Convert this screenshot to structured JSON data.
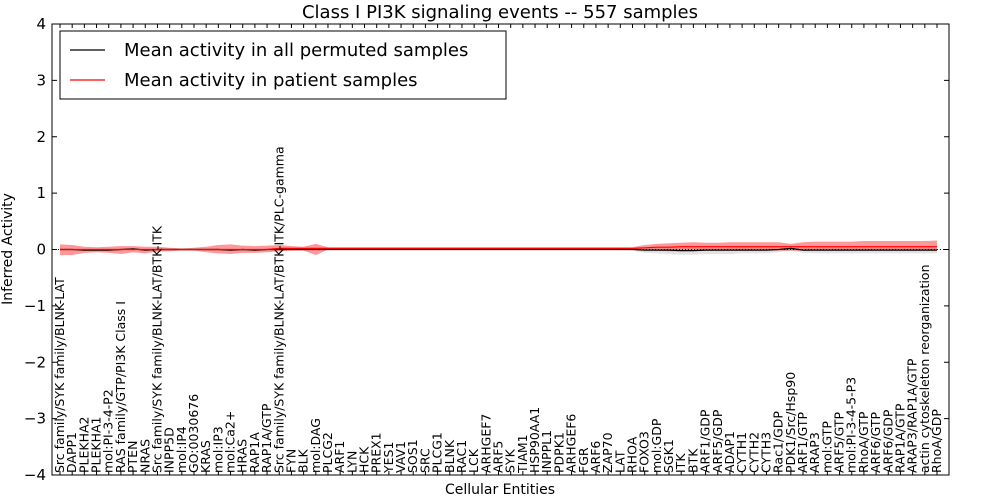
{
  "chart_data": {
    "type": "line",
    "title": "Class I PI3K signaling events -- 557 samples",
    "xlabel": "Cellular Entities",
    "ylabel": "Inferred Activity",
    "ylim": [
      -4,
      4
    ],
    "yticks": [
      -4,
      -3,
      -2,
      -1,
      0,
      1,
      2,
      3,
      4
    ],
    "ytick_labels": [
      "−4",
      "−3",
      "−2",
      "−1",
      "0",
      "1",
      "2",
      "3",
      "4"
    ],
    "legend_position": "top-left",
    "categories": [
      "Src family/SYK family/BLNK-LAT",
      "DAPP1",
      "PLEKHA2",
      "PLEKHA1",
      "mol:PI-3-4-P2",
      "RAS family/GTP/PI3K Class I",
      "PTEN",
      "NRAS",
      "Src family/SYK family/BLNK-LAT/BTK-ITK",
      "INPP5D",
      "mol:IP4",
      "GO:0030676",
      "KRAS",
      "mol:IP3",
      "mol:Ca2+",
      "HRAS",
      "RAP1A",
      "RAP1A/GTP",
      "Src family/SYK family/BLNK-LAT/BTK-ITK/PLC-gamma",
      "FYN",
      "BLK",
      "mol:DAG",
      "PLCG2",
      "ARF1",
      "LYN",
      "HCK",
      "PREX1",
      "YES1",
      "VAV1",
      "SOS1",
      "SRC",
      "PLCG1",
      "BLNK",
      "RAC1",
      "LCK",
      "ARHGEF7",
      "ARF5",
      "SYK",
      "TIAM1",
      "HSP90AA1",
      "INPPL1",
      "PDPK1",
      "ARHGEF6",
      "FGR",
      "ARF6",
      "ZAP70",
      "LAT",
      "RHOA",
      "FOXO3",
      "mol:GDP",
      "SGK1",
      "ITK",
      "BTK",
      "ARF1/GDP",
      "ARF5/GDP",
      "ADAP1",
      "CYTH1",
      "CYTH2",
      "CYTH3",
      "Rac1/GDP",
      "PDK1/Src/Hsp90",
      "ARF1/GTP",
      "ARAP3",
      "mol:GTP",
      "ARF5/GTP",
      "mol:PI-3-4-5-P3",
      "RhoA/GTP",
      "ARF6/GTP",
      "ARF6/GDP",
      "RAP1A/GTP",
      "ARAP3/RAP1A/GTP",
      "actin cytoskeleton reorganization",
      "RhoA/GDP"
    ],
    "series": [
      {
        "name": "Mean activity in all permuted samples",
        "color": "#000000",
        "values": [
          0,
          0,
          -0.01,
          -0.01,
          -0.01,
          0,
          0.01,
          -0.01,
          0,
          0,
          0,
          0,
          0,
          0,
          -0.01,
          0,
          -0.01,
          0,
          0,
          0,
          0,
          0,
          0,
          0,
          0,
          0,
          0,
          0,
          0,
          0,
          0,
          0,
          0,
          0,
          0,
          0,
          0,
          0,
          0,
          0,
          0,
          0,
          0,
          0,
          0,
          0,
          0,
          0,
          -0.01,
          -0.01,
          -0.01,
          -0.02,
          -0.02,
          -0.01,
          -0.01,
          -0.01,
          -0.01,
          -0.01,
          -0.01,
          0,
          0.02,
          -0.01,
          -0.01,
          -0.01,
          -0.01,
          -0.01,
          -0.01,
          -0.01,
          -0.01,
          -0.01,
          -0.01,
          -0.01,
          -0.01
        ],
        "band_low": [
          -0.01,
          -0.01,
          -0.02,
          -0.02,
          -0.02,
          -0.01,
          0,
          -0.02,
          -0.01,
          -0.01,
          -0.01,
          -0.01,
          -0.01,
          -0.01,
          -0.02,
          -0.01,
          -0.02,
          -0.01,
          -0.01,
          -0.01,
          -0.01,
          -0.01,
          -0.01,
          -0.01,
          -0.01,
          -0.01,
          -0.01,
          -0.01,
          -0.01,
          -0.01,
          -0.01,
          -0.01,
          -0.01,
          -0.01,
          -0.01,
          -0.01,
          -0.01,
          -0.01,
          -0.01,
          -0.01,
          -0.01,
          -0.01,
          -0.01,
          -0.01,
          -0.01,
          -0.01,
          -0.01,
          -0.02,
          -0.06,
          -0.07,
          -0.08,
          -0.09,
          -0.09,
          -0.08,
          -0.08,
          -0.08,
          -0.07,
          -0.07,
          -0.07,
          -0.05,
          -0.02,
          -0.06,
          -0.07,
          -0.07,
          -0.07,
          -0.07,
          -0.07,
          -0.07,
          -0.07,
          -0.07,
          -0.07,
          -0.07,
          -0.07
        ],
        "band_high": [
          0.01,
          0.01,
          0,
          0,
          0,
          0.01,
          0.02,
          0,
          0.01,
          0.01,
          0.01,
          0.01,
          0.01,
          0.01,
          0,
          0.01,
          0,
          0.01,
          0.01,
          0.01,
          0.01,
          0.01,
          0.01,
          0.01,
          0.01,
          0.01,
          0.01,
          0.01,
          0.01,
          0.01,
          0.01,
          0.01,
          0.01,
          0.01,
          0.01,
          0.01,
          0.01,
          0.01,
          0.01,
          0.01,
          0.01,
          0.01,
          0.01,
          0.01,
          0.01,
          0.01,
          0.01,
          0.01,
          0.03,
          0.04,
          0.05,
          0.05,
          0.05,
          0.05,
          0.05,
          0.05,
          0.05,
          0.05,
          0.05,
          0.05,
          0.06,
          0.05,
          0.05,
          0.05,
          0.05,
          0.05,
          0.05,
          0.05,
          0.05,
          0.05,
          0.05,
          0.05,
          0.05
        ]
      },
      {
        "name": "Mean activity in patient samples",
        "color": "#ff0000",
        "values": [
          0,
          0,
          0,
          0,
          0,
          0,
          0,
          0,
          0,
          0,
          0,
          0,
          0,
          0,
          0,
          0,
          0,
          0,
          0.02,
          0.02,
          0.02,
          0.02,
          0.02,
          0.02,
          0.02,
          0.02,
          0.02,
          0.02,
          0.02,
          0.02,
          0.02,
          0.02,
          0.02,
          0.02,
          0.02,
          0.02,
          0.02,
          0.02,
          0.02,
          0.02,
          0.02,
          0.02,
          0.02,
          0.02,
          0.02,
          0.02,
          0.02,
          0.02,
          0.03,
          0.04,
          0.04,
          0.05,
          0.05,
          0.05,
          0.05,
          0.05,
          0.05,
          0.05,
          0.05,
          0.05,
          0.05,
          0.05,
          0.05,
          0.05,
          0.05,
          0.05,
          0.05,
          0.05,
          0.05,
          0.05,
          0.05,
          0.05,
          0.05
        ],
        "band_low": [
          -0.1,
          -0.1,
          -0.06,
          -0.05,
          -0.06,
          -0.08,
          -0.05,
          -0.07,
          -0.04,
          -0.03,
          -0.02,
          -0.02,
          -0.05,
          -0.07,
          -0.08,
          -0.06,
          -0.06,
          -0.05,
          -0.03,
          -0.02,
          -0.02,
          -0.1,
          0,
          0,
          0,
          0,
          0,
          0,
          0,
          0,
          0,
          0,
          0,
          0,
          0,
          0,
          0,
          0,
          0,
          0,
          0,
          0,
          0,
          0,
          0,
          0,
          0,
          0,
          -0.01,
          -0.02,
          -0.03,
          -0.03,
          -0.02,
          -0.02,
          -0.02,
          -0.02,
          -0.02,
          -0.02,
          -0.02,
          -0.02,
          -0.02,
          -0.02,
          -0.02,
          -0.02,
          -0.02,
          -0.02,
          -0.02,
          -0.02,
          -0.02,
          -0.02,
          -0.02,
          -0.02,
          -0.02
        ],
        "band_high": [
          0.09,
          0.08,
          0.05,
          0.04,
          0.05,
          0.06,
          0.06,
          0.05,
          0.05,
          0.03,
          0.02,
          0.03,
          0.05,
          0.08,
          0.09,
          0.07,
          0.06,
          0.07,
          0.08,
          0.06,
          0.05,
          0.1,
          0.04,
          0.04,
          0.04,
          0.04,
          0.04,
          0.04,
          0.04,
          0.04,
          0.04,
          0.04,
          0.04,
          0.04,
          0.04,
          0.04,
          0.04,
          0.04,
          0.04,
          0.04,
          0.04,
          0.04,
          0.04,
          0.04,
          0.04,
          0.04,
          0.04,
          0.04,
          0.08,
          0.1,
          0.11,
          0.12,
          0.13,
          0.12,
          0.12,
          0.13,
          0.13,
          0.13,
          0.13,
          0.13,
          0.1,
          0.13,
          0.14,
          0.14,
          0.14,
          0.14,
          0.15,
          0.15,
          0.15,
          0.15,
          0.15,
          0.15,
          0.16
        ]
      }
    ],
    "baseline": 0
  }
}
